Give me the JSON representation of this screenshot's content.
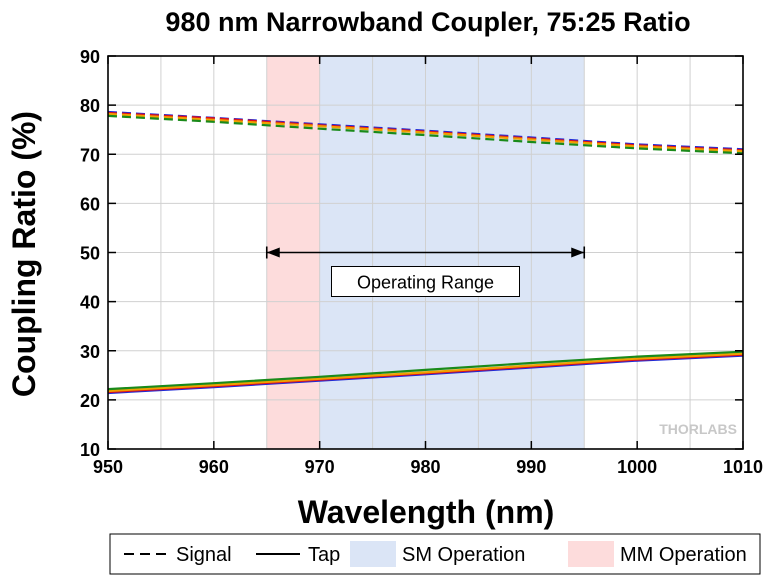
{
  "chart_data": {
    "type": "line",
    "title": "980 nm Narrowband Coupler, 75:25 Ratio",
    "xlabel": "Wavelength (nm)",
    "ylabel": "Coupling Ratio (%)",
    "xlim": [
      950,
      1010
    ],
    "ylim": [
      10,
      90
    ],
    "xticks": [
      950,
      960,
      970,
      980,
      990,
      1000,
      1010
    ],
    "yticks": [
      10,
      20,
      30,
      40,
      50,
      60,
      70,
      80,
      90
    ],
    "grid": true,
    "regions": [
      {
        "name": "MM Operation",
        "x": [
          965,
          970
        ],
        "color": "#fddcdc"
      },
      {
        "name": "SM Operation",
        "x": [
          970,
          995
        ],
        "color": "#dbe5f6"
      }
    ],
    "annotation": {
      "text": "Operating Range",
      "x": [
        965,
        995
      ],
      "y": 50
    },
    "series": [
      {
        "group": "Signal",
        "style": "dashed",
        "color": "#1f2bd6",
        "x": [
          950,
          960,
          970,
          980,
          990,
          1000,
          1010
        ],
        "y": [
          78.6,
          77.4,
          76.1,
          74.8,
          73.4,
          72.0,
          71.0
        ]
      },
      {
        "group": "Signal",
        "style": "dashed",
        "color": "#e0101b",
        "x": [
          950,
          960,
          970,
          980,
          990,
          1000,
          1010
        ],
        "y": [
          78.4,
          77.3,
          75.9,
          74.6,
          73.2,
          71.8,
          70.8
        ]
      },
      {
        "group": "Signal",
        "style": "dashed",
        "color": "#f0a000",
        "x": [
          950,
          960,
          970,
          980,
          990,
          1000,
          1010
        ],
        "y": [
          78.2,
          77.0,
          75.7,
          74.4,
          73.0,
          71.6,
          70.6
        ]
      },
      {
        "group": "Signal",
        "style": "dashed",
        "color": "#1a8a1a",
        "x": [
          950,
          960,
          970,
          980,
          990,
          1000,
          1010
        ],
        "y": [
          77.8,
          76.6,
          75.2,
          73.9,
          72.5,
          71.2,
          70.2
        ]
      },
      {
        "group": "Tap",
        "style": "solid",
        "color": "#1f2bd6",
        "x": [
          950,
          960,
          970,
          980,
          990,
          1000,
          1010
        ],
        "y": [
          21.4,
          22.6,
          23.9,
          25.2,
          26.6,
          28.0,
          29.0
        ]
      },
      {
        "group": "Tap",
        "style": "solid",
        "color": "#e0101b",
        "x": [
          950,
          960,
          970,
          980,
          990,
          1000,
          1010
        ],
        "y": [
          21.6,
          22.8,
          24.1,
          25.4,
          26.8,
          28.2,
          29.2
        ]
      },
      {
        "group": "Tap",
        "style": "solid",
        "color": "#f0a000",
        "x": [
          950,
          960,
          970,
          980,
          990,
          1000,
          1010
        ],
        "y": [
          21.8,
          23.0,
          24.3,
          25.6,
          27.0,
          28.4,
          29.4
        ]
      },
      {
        "group": "Tap",
        "style": "solid",
        "color": "#1a8a1a",
        "x": [
          950,
          960,
          970,
          980,
          990,
          1000,
          1010
        ],
        "y": [
          22.2,
          23.4,
          24.7,
          26.1,
          27.5,
          28.8,
          29.8
        ]
      }
    ],
    "legend": {
      "placement": "bottom",
      "entries": [
        {
          "label": "Signal",
          "kind": "dashed-line",
          "color": "#000000"
        },
        {
          "label": "Tap",
          "kind": "solid-line",
          "color": "#000000"
        },
        {
          "label": "SM Operation",
          "kind": "patch",
          "color": "#dbe5f6"
        },
        {
          "label": "MM Operation",
          "kind": "patch",
          "color": "#fddcdc"
        }
      ]
    },
    "watermark": "THORLABS"
  }
}
